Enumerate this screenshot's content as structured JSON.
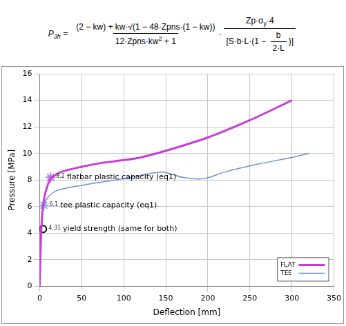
{
  "formula": {
    "lhs": [
      "P",
      {
        "sub": "3h"
      },
      " ="
    ],
    "rhs": [
      {
        "frac": [
          [
            "(2 − kw) + kw·√(1 − 48·Zpns·(1 − kw))"
          ],
          [
            "12·Zpns·kw",
            {
              "sup": "2"
            },
            " + 1"
          ]
        ]
      },
      "·",
      {
        "frac": [
          [
            "Zp·σ",
            {
              "sub": "y"
            },
            "·4"
          ],
          [
            "[S·b·L·(1 − ",
            {
              "frac": [
                [
                  "b"
                ],
                [
                  "2·L"
                ]
              ]
            },
            ")]"
          ]
        ]
      }
    ]
  },
  "chart_data": {
    "type": "line",
    "x_label": "Deflection [mm]",
    "y_label": "Pressure [MPa]",
    "xlim": [
      0,
      350
    ],
    "xticks": [
      0,
      50,
      100,
      150,
      200,
      250,
      300,
      350
    ],
    "ylim": [
      0,
      16
    ],
    "yticks": [
      0,
      2,
      4,
      6,
      8,
      10,
      12,
      14,
      16
    ],
    "grid": true,
    "legend": "lower right",
    "series": [
      {
        "name": "FLAT",
        "color": "#c83cd8",
        "x": [
          0,
          2,
          5,
          10,
          15,
          25,
          50,
          75,
          100,
          120,
          150,
          200,
          250,
          300
        ],
        "values": [
          0,
          4.3,
          6.5,
          7.7,
          8.2,
          8.6,
          9.0,
          9.3,
          9.5,
          9.7,
          10.2,
          11.2,
          12.5,
          14.0
        ]
      },
      {
        "name": "TEE",
        "color": "#6f8fd6",
        "x": [
          0,
          2,
          5,
          10,
          20,
          50,
          100,
          145,
          170,
          195,
          220,
          260,
          300,
          320
        ],
        "values": [
          0,
          4.3,
          6.1,
          6.7,
          7.2,
          7.6,
          8.1,
          8.6,
          8.2,
          8.1,
          8.6,
          9.2,
          9.7,
          10.0
        ]
      }
    ],
    "annotations": [
      {
        "x": 13,
        "y": 8.2,
        "value_label": "8.2",
        "text": "flatbar plastic capacity (eq1)",
        "marker": "star",
        "color": "#b07ad8"
      },
      {
        "x": 5,
        "y": 6.1,
        "value_label": "6.1",
        "text": "tee plastic capacity (eq1)",
        "marker": "star",
        "color": "#8fa6e0"
      },
      {
        "x": 4,
        "y": 4.31,
        "value_label": "4.31",
        "text": "yield strength (same for both)",
        "marker": "circle",
        "color": "#000000"
      }
    ]
  }
}
